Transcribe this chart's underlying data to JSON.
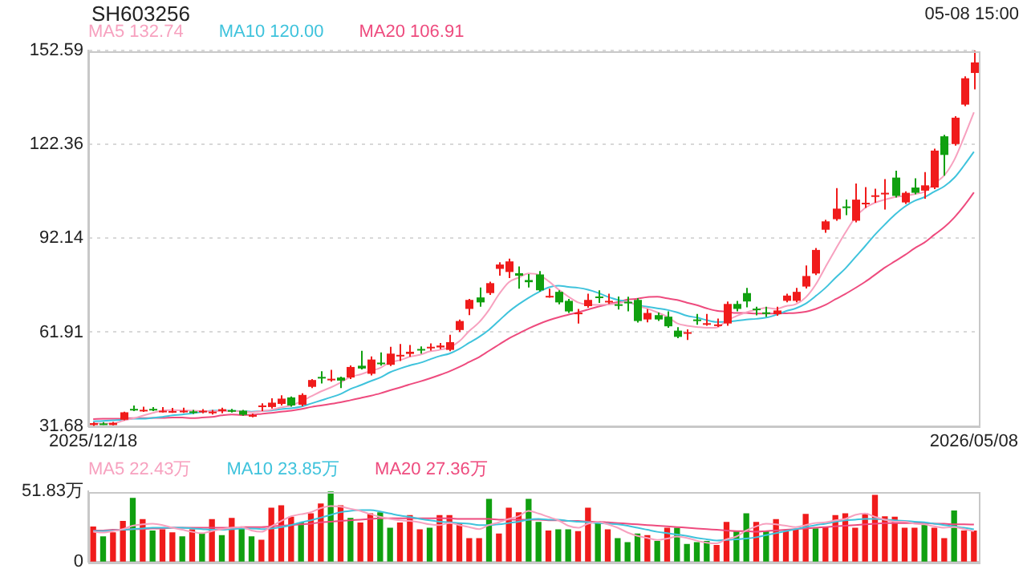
{
  "chart_data": [
    {
      "type": "candlestick",
      "title": "SH603256",
      "annotations": [
        "05-08 15:00"
      ],
      "legend": "top left",
      "grid": "y",
      "marker": "none",
      "categories": [
        "2025/12/18",
        null,
        null,
        null,
        null,
        null,
        null,
        null,
        null,
        null,
        null,
        null,
        null,
        null,
        null,
        null,
        null,
        null,
        null,
        null,
        null,
        null,
        null,
        null,
        null,
        null,
        null,
        null,
        null,
        null,
        null,
        null,
        null,
        null,
        null,
        null,
        null,
        null,
        null,
        null,
        null,
        null,
        null,
        null,
        null,
        null,
        null,
        null,
        null,
        null,
        null,
        null,
        null,
        null,
        null,
        null,
        null,
        null,
        null,
        null,
        null,
        null,
        null,
        null,
        null,
        null,
        null,
        null,
        null,
        null,
        null,
        null,
        null,
        null,
        null,
        null,
        null,
        null,
        null,
        null,
        null,
        null,
        null,
        null,
        null,
        null,
        null,
        null,
        null,
        "2026/05/08"
      ],
      "ohlc": [
        [
          32.0,
          32.9,
          31.68,
          32.6
        ],
        [
          32.5,
          32.9,
          32.0,
          32.3
        ],
        [
          32.0,
          33.0,
          31.9,
          32.7
        ],
        [
          33.7,
          36.3,
          33.5,
          36.1
        ],
        [
          37.2,
          38.3,
          36.5,
          37.0
        ],
        [
          36.7,
          37.9,
          36.2,
          36.9
        ],
        [
          37.2,
          37.8,
          36.5,
          37.0
        ],
        [
          36.4,
          37.8,
          36.0,
          36.6
        ],
        [
          36.2,
          37.5,
          35.9,
          36.5
        ],
        [
          36.3,
          37.6,
          35.9,
          36.6
        ],
        [
          36.4,
          36.9,
          35.6,
          36.1
        ],
        [
          36.2,
          37.1,
          35.8,
          36.6
        ],
        [
          36.0,
          36.9,
          35.4,
          36.3
        ],
        [
          36.5,
          37.6,
          35.8,
          37.1
        ],
        [
          36.8,
          37.2,
          36.0,
          36.5
        ],
        [
          36.6,
          36.9,
          35.0,
          35.3
        ],
        [
          34.8,
          35.7,
          34.5,
          35.2
        ],
        [
          37.8,
          39.0,
          36.5,
          38.3
        ],
        [
          37.8,
          40.6,
          37.3,
          39.2
        ],
        [
          38.8,
          41.6,
          38.3,
          40.5
        ],
        [
          40.9,
          41.2,
          37.9,
          38.3
        ],
        [
          38.5,
          42.2,
          38.0,
          41.7
        ],
        [
          44.3,
          46.8,
          43.9,
          46.5
        ],
        [
          47.5,
          49.3,
          45.4,
          47.2
        ],
        [
          46.6,
          49.8,
          46.0,
          46.9
        ],
        [
          47.3,
          47.6,
          43.9,
          46.3
        ],
        [
          47.3,
          51.2,
          46.8,
          50.7
        ],
        [
          51.1,
          55.9,
          49.9,
          50.2
        ],
        [
          48.5,
          54.1,
          48.0,
          53.1
        ],
        [
          52.1,
          55.4,
          51.1,
          51.8
        ],
        [
          51.4,
          57.2,
          51.0,
          55.0
        ],
        [
          54.3,
          58.1,
          52.6,
          54.6
        ],
        [
          54.9,
          57.8,
          54.0,
          55.6
        ],
        [
          56.5,
          57.3,
          55.0,
          56.0
        ],
        [
          56.8,
          58.3,
          56.0,
          57.2
        ],
        [
          57.0,
          58.4,
          56.4,
          57.6
        ],
        [
          56.2,
          61.1,
          55.8,
          58.7
        ],
        [
          62.6,
          66.0,
          62.0,
          65.5
        ],
        [
          69.4,
          72.6,
          67.4,
          72.3
        ],
        [
          73.1,
          76.3,
          70.1,
          71.5
        ],
        [
          74.5,
          78.2,
          73.9,
          77.7
        ],
        [
          82.3,
          84.4,
          80.1,
          83.7
        ],
        [
          81.3,
          85.6,
          79.3,
          84.7
        ],
        [
          80.9,
          83.1,
          75.9,
          80.1
        ],
        [
          78.7,
          80.6,
          76.3,
          78.0
        ],
        [
          80.5,
          81.6,
          75.0,
          75.4
        ],
        [
          73.3,
          75.9,
          73.0,
          73.6
        ],
        [
          74.9,
          75.4,
          70.9,
          71.5
        ],
        [
          72.0,
          72.6,
          68.1,
          68.6
        ],
        [
          67.9,
          69.4,
          64.7,
          68.2
        ],
        [
          70.3,
          74.3,
          69.8,
          72.3
        ],
        [
          73.4,
          75.4,
          71.3,
          72.9
        ],
        [
          71.6,
          74.3,
          71.0,
          72.0
        ],
        [
          70.9,
          73.4,
          69.2,
          70.4
        ],
        [
          71.7,
          73.3,
          68.6,
          71.3
        ],
        [
          72.3,
          72.9,
          65.0,
          65.5
        ],
        [
          66.0,
          69.3,
          65.1,
          68.1
        ],
        [
          67.4,
          68.2,
          65.5,
          66.0
        ],
        [
          66.9,
          68.6,
          63.3,
          63.8
        ],
        [
          62.4,
          63.5,
          60.0,
          60.4
        ],
        [
          61.6,
          62.8,
          59.4,
          61.9
        ],
        [
          66.0,
          67.8,
          64.3,
          65.7
        ],
        [
          64.5,
          67.8,
          64.0,
          64.8
        ],
        [
          64.1,
          66.3,
          63.6,
          64.4
        ],
        [
          64.7,
          71.8,
          64.0,
          71.0
        ],
        [
          71.0,
          72.0,
          68.6,
          69.4
        ],
        [
          74.5,
          76.2,
          69.9,
          71.8
        ],
        [
          69.5,
          70.1,
          67.3,
          69.1
        ],
        [
          68.3,
          70.1,
          66.8,
          67.9
        ],
        [
          67.7,
          70.1,
          67.2,
          68.9
        ],
        [
          72.0,
          74.3,
          71.5,
          73.7
        ],
        [
          72.0,
          76.2,
          71.5,
          74.9
        ],
        [
          76.6,
          83.4,
          76.0,
          80.0
        ],
        [
          80.8,
          89.0,
          80.3,
          88.4
        ],
        [
          94.9,
          98.1,
          93.9,
          97.6
        ],
        [
          98.3,
          108.3,
          97.8,
          101.7
        ],
        [
          102.4,
          104.6,
          99.6,
          101.9
        ],
        [
          97.8,
          109.8,
          97.3,
          104.6
        ],
        [
          103.2,
          108.6,
          101.9,
          103.6
        ],
        [
          105.6,
          108.1,
          103.6,
          106.0
        ],
        [
          106.4,
          111.2,
          101.4,
          106.8
        ],
        [
          111.7,
          113.9,
          105.3,
          105.8
        ],
        [
          103.7,
          107.3,
          103.2,
          106.8
        ],
        [
          108.5,
          111.5,
          106.3,
          106.8
        ],
        [
          107.5,
          113.5,
          104.9,
          109.2
        ],
        [
          108.5,
          121.0,
          108.0,
          120.4
        ],
        [
          125.0,
          125.5,
          112.3,
          119.0
        ],
        [
          122.5,
          131.5,
          122.0,
          131.0
        ],
        [
          135.2,
          144.3,
          134.7,
          143.7
        ],
        [
          145.4,
          152.59,
          140.1,
          148.8
        ]
      ],
      "colors": [
        "#f01b1b",
        "#10a010",
        "#f01b1b",
        "#f01b1b",
        "#10a010",
        "#f01b1b",
        "#10a010",
        "#f01b1b",
        "#f01b1b",
        "#f01b1b",
        "#10a010",
        "#f01b1b",
        "#f01b1b",
        "#f01b1b",
        "#10a010",
        "#10a010",
        "#f01b1b",
        "#f01b1b",
        "#f01b1b",
        "#f01b1b",
        "#10a010",
        "#f01b1b",
        "#f01b1b",
        "#10a010",
        "#f01b1b",
        "#10a010",
        "#f01b1b",
        "#10a010",
        "#f01b1b",
        "#10a010",
        "#f01b1b",
        "#f01b1b",
        "#f01b1b",
        "#10a010",
        "#f01b1b",
        "#f01b1b",
        "#f01b1b",
        "#f01b1b",
        "#f01b1b",
        "#10a010",
        "#f01b1b",
        "#f01b1b",
        "#f01b1b",
        "#10a010",
        "#10a010",
        "#10a010",
        "#f01b1b",
        "#10a010",
        "#10a010",
        "#f01b1b",
        "#f01b1b",
        "#10a010",
        "#f01b1b",
        "#10a010",
        "#10a010",
        "#10a010",
        "#f01b1b",
        "#10a010",
        "#10a010",
        "#10a010",
        "#f01b1b",
        "#10a010",
        "#f01b1b",
        "#f01b1b",
        "#f01b1b",
        "#10a010",
        "#10a010",
        "#10a010",
        "#10a010",
        "#f01b1b",
        "#f01b1b",
        "#f01b1b",
        "#f01b1b",
        "#f01b1b",
        "#f01b1b",
        "#f01b1b",
        "#10a010",
        "#f01b1b",
        "#f01b1b",
        "#f01b1b",
        "#f01b1b",
        "#10a010",
        "#f01b1b",
        "#10a010",
        "#f01b1b",
        "#f01b1b",
        "#10a010",
        "#f01b1b",
        "#f01b1b",
        "#f01b1b"
      ],
      "series": [
        {
          "type": "line",
          "name": "MA5 132.74",
          "color": "#f7a1bf",
          "values": [
            32.6,
            32.5,
            32.5,
            33.4,
            34.1,
            35.0,
            35.9,
            36.7,
            36.8,
            36.7,
            36.6,
            36.5,
            36.4,
            36.5,
            36.5,
            36.4,
            36.1,
            36.5,
            36.9,
            37.7,
            38.3,
            39.6,
            41.2,
            42.8,
            44.1,
            45.7,
            47.5,
            48.3,
            49.4,
            50.4,
            52.2,
            52.9,
            54.0,
            54.6,
            55.7,
            56.2,
            57.0,
            59.0,
            62.3,
            65.1,
            69.1,
            74.1,
            78.0,
            79.5,
            80.8,
            80.4,
            78.4,
            75.7,
            73.4,
            71.5,
            70.8,
            70.7,
            70.8,
            71.2,
            71.8,
            70.4,
            69.5,
            68.3,
            66.9,
            64.8,
            64.0,
            63.6,
            63.3,
            63.4,
            65.6,
            67.1,
            68.3,
            69.1,
            69.8,
            69.4,
            70.3,
            70.9,
            73.1,
            77.2,
            82.9,
            88.5,
            93.9,
            98.8,
            101.9,
            103.6,
            104.6,
            105.4,
            105.8,
            106.4,
            107.1,
            109.8,
            112.4,
            117.3,
            124.7,
            132.74
          ]
        },
        {
          "type": "line",
          "name": "MA10 120.00",
          "color": "#3fc3dc",
          "values": [
            33.2,
            33.3,
            33.5,
            33.7,
            34.0,
            34.0,
            34.3,
            34.6,
            35.1,
            35.4,
            35.8,
            36.2,
            36.6,
            36.7,
            36.6,
            36.5,
            36.3,
            36.5,
            36.7,
            37.1,
            37.4,
            37.9,
            38.9,
            39.9,
            40.9,
            42.0,
            43.6,
            44.8,
            46.1,
            47.3,
            49.0,
            50.2,
            51.2,
            52.0,
            53.1,
            54.2,
            55.0,
            56.5,
            58.5,
            60.4,
            62.7,
            65.6,
            68.5,
            70.9,
            73.0,
            74.8,
            76.3,
            76.9,
            76.5,
            76.2,
            75.6,
            74.6,
            73.3,
            72.3,
            71.7,
            70.6,
            70.1,
            69.6,
            69.1,
            68.3,
            67.2,
            66.6,
            65.8,
            65.2,
            65.2,
            65.6,
            66.0,
            66.2,
            66.6,
            67.5,
            68.7,
            69.6,
            71.1,
            73.5,
            76.2,
            79.4,
            82.4,
            86.0,
            89.6,
            93.3,
            96.6,
            99.7,
            102.3,
            104.2,
            105.4,
            107.2,
            108.9,
            111.6,
            115.6,
            120.0
          ]
        },
        {
          "type": "line",
          "name": "MA20 106.91",
          "color": "#ee4b7e",
          "values": [
            33.9,
            34.0,
            34.0,
            34.1,
            34.2,
            34.2,
            34.3,
            34.3,
            34.4,
            34.4,
            34.2,
            34.4,
            34.6,
            35.1,
            35.4,
            35.2,
            35.3,
            35.6,
            35.9,
            36.3,
            36.6,
            37.1,
            37.8,
            38.3,
            38.8,
            39.3,
            40.0,
            40.7,
            41.4,
            42.2,
            43.2,
            44.1,
            45.1,
            46.0,
            47.0,
            48.1,
            49.3,
            50.7,
            52.3,
            53.9,
            55.9,
            57.9,
            59.9,
            61.5,
            63.1,
            64.5,
            65.7,
            66.7,
            67.5,
            68.3,
            69.2,
            70.1,
            70.9,
            71.6,
            72.4,
            72.7,
            73.2,
            73.3,
            72.8,
            72.3,
            71.4,
            70.6,
            69.6,
            68.8,
            68.5,
            68.1,
            68.1,
            67.9,
            67.9,
            67.9,
            68.0,
            68.1,
            68.5,
            69.4,
            70.7,
            72.5,
            74.2,
            76.1,
            78.1,
            80.4,
            82.7,
            84.7,
            86.7,
            88.9,
            90.8,
            93.3,
            95.7,
            98.8,
            102.6,
            106.91
          ]
        }
      ],
      "ylim": [
        31.68,
        152.59
      ],
      "yticks": [
        31.68,
        61.91,
        92.14,
        122.36,
        152.59
      ]
    },
    {
      "type": "bar",
      "legend": "top left",
      "marker": "none",
      "tick_labels": "y",
      "categories": [
        null,
        null,
        null,
        null,
        null,
        null,
        null,
        null,
        null,
        null,
        null,
        null,
        null,
        null,
        null,
        null,
        null,
        null,
        null,
        null,
        null,
        null,
        null,
        null,
        null,
        null,
        null,
        null,
        null,
        null,
        null,
        null,
        null,
        null,
        null,
        null,
        null,
        null,
        null,
        null,
        null,
        null,
        null,
        null,
        null,
        null,
        null,
        null,
        null,
        null,
        null,
        null,
        null,
        null,
        null,
        null,
        null,
        null,
        null,
        null,
        null,
        null,
        null,
        null,
        null,
        null,
        null,
        null,
        null,
        null,
        null,
        null,
        null,
        null,
        null,
        null,
        null,
        null,
        null,
        null,
        null,
        null,
        null,
        null,
        null,
        null,
        null,
        null,
        null,
        null
      ],
      "values": [
        25.5,
        18.3,
        21.2,
        29.7,
        46.7,
        31.0,
        22.5,
        23.4,
        21.2,
        18.3,
        23.4,
        20.4,
        31.0,
        19.1,
        31.9,
        25.5,
        18.3,
        15.7,
        39.5,
        41.2,
        32.7,
        28.5,
        35.3,
        42.5,
        51.83,
        41.2,
        31.9,
        28.5,
        35.3,
        36.1,
        24.6,
        28.5,
        34.0,
        23.4,
        24.6,
        34.0,
        34.0,
        28.5,
        17.0,
        17.0,
        45.9,
        20.4,
        39.5,
        36.1,
        45.9,
        28.9,
        22.5,
        23.4,
        23.4,
        22.1,
        39.5,
        29.7,
        23.4,
        17.0,
        14.0,
        20.4,
        19.1,
        14.9,
        24.6,
        24.6,
        12.7,
        14.0,
        14.9,
        11.9,
        28.9,
        22.5,
        35.3,
        28.9,
        22.1,
        31.0,
        22.1,
        23.4,
        34.8,
        24.2,
        25.5,
        34.0,
        35.3,
        24.6,
        35.3,
        48.9,
        33.1,
        32.7,
        24.6,
        24.6,
        27.6,
        24.6,
        17.0,
        37.4,
        22.5,
        22.5
      ],
      "colors": [
        "#f01b1b",
        "#10a010",
        "#f01b1b",
        "#f01b1b",
        "#10a010",
        "#f01b1b",
        "#10a010",
        "#f01b1b",
        "#f01b1b",
        "#10a010",
        "#f01b1b",
        "#10a010",
        "#f01b1b",
        "#10a010",
        "#f01b1b",
        "#10a010",
        "#10a010",
        "#f01b1b",
        "#f01b1b",
        "#f01b1b",
        "#f01b1b",
        "#10a010",
        "#f01b1b",
        "#f01b1b",
        "#10a010",
        "#f01b1b",
        "#10a010",
        "#f01b1b",
        "#f01b1b",
        "#10a010",
        "#10a010",
        "#f01b1b",
        "#f01b1b",
        "#f01b1b",
        "#10a010",
        "#f01b1b",
        "#f01b1b",
        "#f01b1b",
        "#f01b1b",
        "#f01b1b",
        "#10a010",
        "#f01b1b",
        "#f01b1b",
        "#f01b1b",
        "#10a010",
        "#10a010",
        "#f01b1b",
        "#10a010",
        "#10a010",
        "#f01b1b",
        "#f01b1b",
        "#10a010",
        "#f01b1b",
        "#10a010",
        "#10a010",
        "#10a010",
        "#f01b1b",
        "#10a010",
        "#f01b1b",
        "#10a010",
        "#10a010",
        "#10a010",
        "#10a010",
        "#f01b1b",
        "#f01b1b",
        "#10a010",
        "#10a010",
        "#f01b1b",
        "#10a010",
        "#f01b1b",
        "#f01b1b",
        "#f01b1b",
        "#f01b1b",
        "#10a010",
        "#f01b1b",
        "#f01b1b",
        "#f01b1b",
        "#f01b1b",
        "#f01b1b",
        "#f01b1b",
        "#f01b1b",
        "#f01b1b",
        "#f01b1b",
        "#f01b1b",
        "#10a010",
        "#f01b1b",
        "#f01b1b",
        "#10a010",
        "#f01b1b",
        "#f01b1b"
      ],
      "series": [
        {
          "type": "line",
          "name": "MA5 22.43万",
          "color": "#f7a1bf",
          "values": [
            22.0,
            21.5,
            22.5,
            24.0,
            26.5,
            27.5,
            28.0,
            27.0,
            25.0,
            23.5,
            22.0,
            21.0,
            22.5,
            24.0,
            25.0,
            25.5,
            23.0,
            22.0,
            26.0,
            30.0,
            33.5,
            35.0,
            36.5,
            39.5,
            41.0,
            40.5,
            39.0,
            37.5,
            35.0,
            33.0,
            31.5,
            30.5,
            30.0,
            29.0,
            27.5,
            27.0,
            28.5,
            27.0,
            25.5,
            24.0,
            27.0,
            29.0,
            31.5,
            33.5,
            37.5,
            35.5,
            33.0,
            30.5,
            26.5,
            25.0,
            28.0,
            29.5,
            27.5,
            25.0,
            21.5,
            19.0,
            17.5,
            16.0,
            17.0,
            18.5,
            17.5,
            15.5,
            14.0,
            13.5,
            16.5,
            18.5,
            23.0,
            26.0,
            28.0,
            27.5,
            26.5,
            25.5,
            27.0,
            28.5,
            29.0,
            30.5,
            31.5,
            34.5,
            35.5,
            33.0,
            31.0,
            29.5,
            29.5,
            28.0,
            27.5,
            26.0,
            25.0,
            25.5,
            24.0,
            22.43
          ]
        },
        {
          "type": "line",
          "name": "MA10 23.85万",
          "color": "#3fc3dc",
          "values": [
            22.5,
            22.5,
            23.0,
            23.5,
            24.0,
            24.5,
            25.0,
            25.0,
            25.0,
            25.0,
            24.5,
            24.0,
            23.5,
            23.5,
            24.0,
            24.5,
            24.5,
            24.0,
            24.5,
            25.5,
            27.0,
            29.0,
            30.5,
            32.5,
            34.5,
            36.5,
            37.5,
            38.0,
            38.0,
            37.0,
            35.5,
            34.0,
            33.0,
            31.5,
            30.5,
            29.5,
            29.0,
            28.5,
            28.0,
            27.0,
            27.0,
            27.5,
            28.5,
            29.5,
            31.0,
            31.5,
            31.0,
            31.0,
            30.0,
            29.5,
            29.0,
            28.5,
            28.0,
            27.5,
            26.5,
            25.0,
            23.5,
            22.0,
            21.0,
            20.0,
            19.0,
            17.5,
            16.5,
            15.5,
            16.0,
            16.5,
            17.0,
            18.0,
            19.5,
            21.0,
            22.5,
            24.0,
            25.5,
            27.0,
            28.0,
            29.5,
            30.5,
            31.0,
            31.5,
            31.5,
            31.0,
            30.5,
            30.0,
            29.5,
            29.0,
            28.0,
            27.0,
            26.0,
            25.0,
            23.85
          ]
        },
        {
          "type": "line",
          "name": "MA20 27.36万",
          "color": "#ee4b7e",
          "values": [
            23.0,
            23.0,
            23.5,
            23.5,
            24.0,
            24.0,
            24.5,
            24.5,
            25.0,
            25.0,
            25.0,
            25.0,
            25.0,
            25.0,
            25.0,
            25.5,
            25.5,
            25.5,
            26.0,
            26.5,
            27.0,
            27.5,
            28.0,
            29.0,
            29.5,
            30.0,
            30.5,
            31.0,
            31.5,
            32.0,
            32.0,
            32.0,
            32.0,
            32.0,
            32.0,
            32.0,
            32.0,
            31.5,
            31.5,
            31.5,
            31.5,
            31.0,
            31.0,
            31.0,
            31.0,
            31.0,
            30.5,
            30.5,
            30.0,
            30.0,
            29.5,
            29.5,
            29.0,
            28.5,
            28.0,
            27.5,
            27.0,
            26.5,
            26.0,
            25.5,
            25.0,
            24.5,
            24.0,
            23.5,
            23.0,
            22.5,
            22.5,
            22.0,
            22.5,
            23.0,
            23.5,
            24.0,
            24.5,
            25.0,
            25.5,
            26.0,
            26.5,
            27.0,
            27.5,
            28.0,
            28.5,
            28.5,
            28.5,
            28.5,
            28.5,
            28.0,
            28.0,
            27.5,
            27.5,
            27.36
          ]
        }
      ],
      "ylim": [
        0,
        51.83
      ],
      "yticks": [
        0,
        {
          "value": 51.83,
          "label": "51.83万"
        }
      ]
    }
  ]
}
